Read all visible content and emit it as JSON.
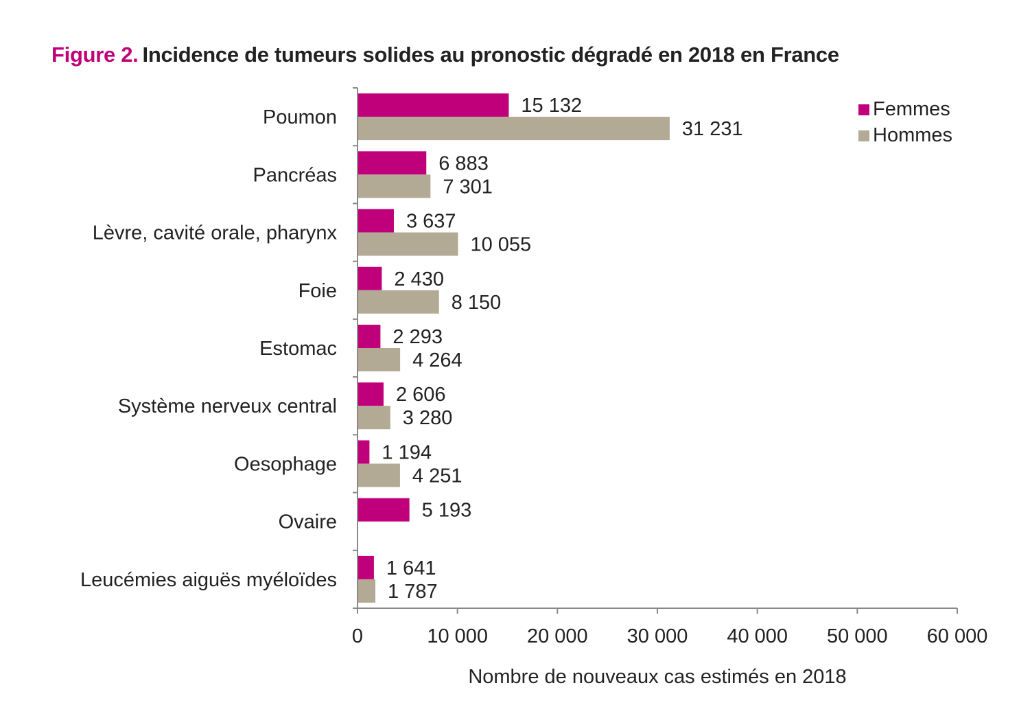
{
  "title": {
    "figure": "Figure 2.",
    "text": "Incidence de tumeurs solides au pronostic dégradé en 2018 en France"
  },
  "colors": {
    "femmes": "#c0007a",
    "hommes": "#b2aa95",
    "axis": "#888888"
  },
  "chart_data": {
    "type": "bar",
    "orientation": "horizontal",
    "categories": [
      "Poumon",
      "Pancréas",
      "Lèvre, cavité orale, pharynx",
      "Foie",
      "Estomac",
      "Système nerveux central",
      "Oesophage",
      "Ovaire",
      "Leucémies aiguës myéloïdes"
    ],
    "series": [
      {
        "name": "Femmes",
        "values": [
          15132,
          6883,
          3637,
          2430,
          2293,
          2606,
          1194,
          5193,
          1641
        ],
        "labels": [
          "15 132",
          "6 883",
          "3 637",
          "2 430",
          "2 293",
          "2 606",
          "1 194",
          "5 193",
          "1 641"
        ]
      },
      {
        "name": "Hommes",
        "values": [
          31231,
          7301,
          10055,
          8150,
          4264,
          3280,
          4251,
          null,
          1787
        ],
        "labels": [
          "31 231",
          "7 301",
          "10 055",
          "8 150",
          "4 264",
          "3 280",
          "4 251",
          "",
          "1 787"
        ]
      }
    ],
    "xlim": [
      0,
      60000
    ],
    "xticks": [
      0,
      10000,
      20000,
      30000,
      40000,
      50000,
      60000
    ],
    "xtick_labels": [
      "0",
      "10 000",
      "20 000",
      "30 000",
      "40 000",
      "50 000",
      "60 000"
    ],
    "xlabel": "Nombre de nouveaux cas estimés en 2018",
    "ylabel": "",
    "legend": {
      "position": "top-right",
      "entries": [
        "Femmes",
        "Hommes"
      ]
    },
    "grid": false
  }
}
